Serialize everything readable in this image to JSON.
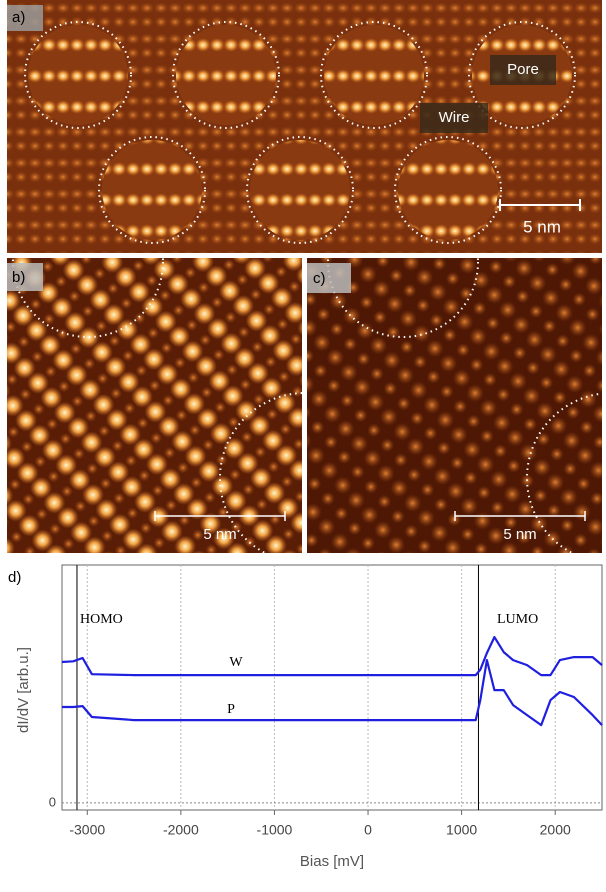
{
  "panels": {
    "a": {
      "label": "a)",
      "annotations": [
        "Pore",
        "Wire"
      ],
      "scale_bar": "5 nm"
    },
    "b": {
      "label": "b)",
      "scale_bar": "5 nm"
    },
    "c": {
      "label": "c)",
      "scale_bar": "5 nm"
    }
  },
  "chart_data": {
    "type": "line",
    "label": "d)",
    "xlabel": "Bias [mV]",
    "ylabel": "dI/dV [arb.u.]",
    "x": [
      -3270,
      -3150,
      -3050,
      -2950,
      -2500,
      -2000,
      -1500,
      -1000,
      -500,
      0,
      500,
      1000,
      1150,
      1200,
      1270,
      1350,
      1450,
      1550,
      1700,
      1850,
      1950,
      2050,
      2200,
      2400,
      2500
    ],
    "series": [
      {
        "name": "W",
        "color": "#1f1fe0",
        "values": [
          5.92,
          5.95,
          6.09,
          5.41,
          5.37,
          5.37,
          5.37,
          5.37,
          5.37,
          5.37,
          5.37,
          5.37,
          5.37,
          5.6,
          6.3,
          6.97,
          6.34,
          6.0,
          5.79,
          5.37,
          5.37,
          6.0,
          6.13,
          6.13,
          5.79
        ]
      },
      {
        "name": "P",
        "color": "#1f1fe0",
        "values": [
          4.03,
          4.03,
          4.07,
          3.61,
          3.48,
          3.48,
          3.48,
          3.48,
          3.48,
          3.48,
          3.48,
          3.48,
          3.48,
          4.32,
          6.0,
          4.74,
          4.74,
          4.11,
          3.69,
          3.27,
          4.32,
          4.66,
          4.45,
          3.69,
          3.27
        ]
      }
    ],
    "annotations": [
      "HOMO",
      "LUMO"
    ],
    "vlines": [
      -3110,
      1180
    ],
    "xlim": [
      -3270,
      2500
    ],
    "xticks": [
      -3000,
      -2000,
      -1000,
      0,
      1000,
      2000
    ],
    "ylim": [
      -0.3,
      10
    ],
    "yticks": [
      0
    ],
    "grid": true
  }
}
